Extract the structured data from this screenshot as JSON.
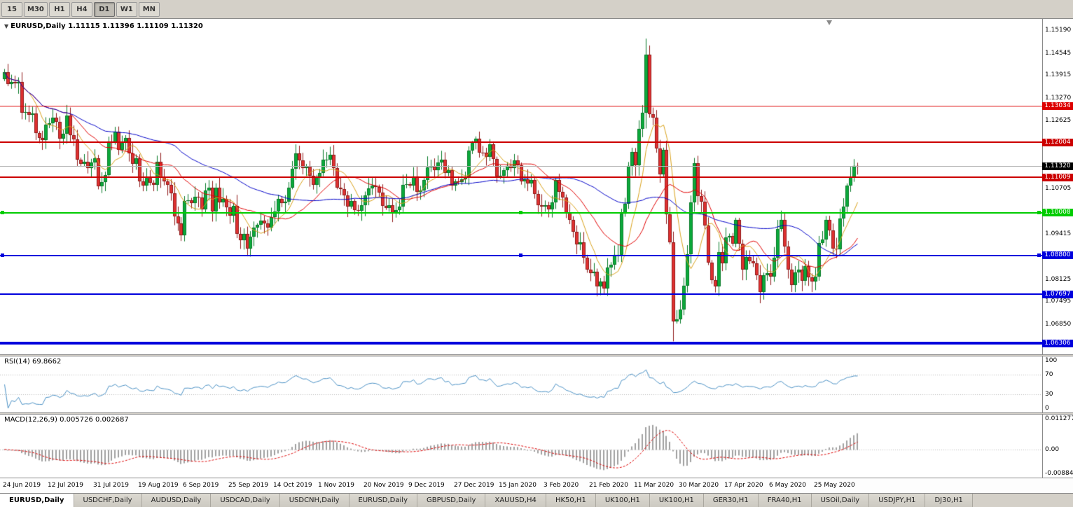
{
  "toolbar": {
    "periods": [
      "15",
      "M30",
      "H1",
      "H4",
      "D1",
      "W1",
      "MN"
    ],
    "active_period": "D1"
  },
  "chart": {
    "title": "EURUSD,Daily",
    "ohlc_text": "1.11115 1.11396 1.11109 1.11320",
    "price_axis_ticks": [
      "1.15190",
      "1.14545",
      "1.13915",
      "1.13270",
      "1.12625",
      "1.10705",
      "1.09415",
      "1.08125",
      "1.07495",
      "1.06850"
    ],
    "price_max": 1.1533,
    "price_min": 1.0615,
    "hlines": [
      {
        "price": 1.13034,
        "label": "1.13034",
        "color": "#dd0000",
        "thickness": 1,
        "handles": false,
        "style": "line"
      },
      {
        "price": 1.12004,
        "label": "1.12004",
        "color": "#cc0000",
        "thickness": 2,
        "handles": false,
        "style": "line"
      },
      {
        "price": 1.1132,
        "label": "1.11320",
        "color": "#000000",
        "thickness": 1,
        "handles": false,
        "style": "bid"
      },
      {
        "price": 1.11009,
        "label": "1.11009",
        "color": "#cc0000",
        "thickness": 2,
        "handles": false,
        "style": "line"
      },
      {
        "price": 1.10008,
        "label": "1.10008",
        "color": "#00cc00",
        "thickness": 2,
        "handles": true,
        "style": "line"
      },
      {
        "price": 1.088,
        "label": "1.08800",
        "color": "#0000dd",
        "thickness": 2,
        "handles": true,
        "style": "line"
      },
      {
        "price": 1.07697,
        "label": "1.07697",
        "color": "#0000dd",
        "thickness": 2,
        "handles": false,
        "style": "line"
      },
      {
        "price": 1.06306,
        "label": "1.06306",
        "color": "#0000dd",
        "thickness": 4,
        "handles": false,
        "style": "line"
      }
    ],
    "date_labels": [
      "24 Jun 2019",
      "12 Jul 2019",
      "31 Jul 2019",
      "19 Aug 2019",
      "6 Sep 2019",
      "25 Sep 2019",
      "14 Oct 2019",
      "1 Nov 2019",
      "20 Nov 2019",
      "9 Dec 2019",
      "27 Dec 2019",
      "15 Jan 2020",
      "3 Feb 2020",
      "21 Feb 2020",
      "11 Mar 2020",
      "30 Mar 2020",
      "17 Apr 2020",
      "6 May 2020",
      "25 May 2020"
    ]
  },
  "rsi": {
    "header": "RSI(14) 69.8662",
    "ticks": [
      "100",
      "70",
      "30",
      "0"
    ],
    "levels": [
      70,
      30
    ],
    "line_color": "#4a90c4"
  },
  "macd": {
    "header": "MACD(12,26,9) 0.005726 0.002687",
    "ticks": [
      "0.011277",
      "0.00",
      "-0.008847"
    ],
    "max": 0.011277,
    "min": -0.008847,
    "histogram_color": "#a0a0a0",
    "signal_color": "#dd0000"
  },
  "tabs": {
    "active_index": 0,
    "items": [
      "EURUSD,Daily",
      "USDCHF,Daily",
      "AUDUSD,Daily",
      "USDCAD,Daily",
      "USDCNH,Daily",
      "EURUSD,Daily",
      "GBPUSD,Daily",
      "XAUUSD,H4",
      "HK50,H1",
      "UK100,H1",
      "UK100,H1",
      "GER30,H1",
      "FRA40,H1",
      "USOil,Daily",
      "USDJPY,H1",
      "DJ30,H1"
    ]
  },
  "chart_data": {
    "type": "candlestick",
    "symbol": "EURUSD",
    "timeframe": "Daily",
    "first_open": 1.138,
    "up_color": "#0caa3c",
    "down_color": "#e03131",
    "ma_overlays": [
      {
        "period": 8,
        "color": "#d8a018"
      },
      {
        "period": 20,
        "color": "#e00000"
      },
      {
        "period": 50,
        "color": "#0000c8"
      }
    ],
    "special_bars": {
      "185": {
        "high": 1.1495,
        "low": 1.124
      },
      "193": {
        "low": 1.0636
      },
      "245": {
        "high": 1.1153
      }
    },
    "closes": [
      1.1399,
      1.1367,
      1.1373,
      1.1368,
      1.1373,
      1.1285,
      1.1287,
      1.1278,
      1.1283,
      1.1227,
      1.1213,
      1.1208,
      1.1251,
      1.1254,
      1.127,
      1.1258,
      1.1211,
      1.1226,
      1.1276,
      1.1221,
      1.1209,
      1.1151,
      1.1139,
      1.1146,
      1.1128,
      1.1143,
      1.1156,
      1.1076,
      1.1087,
      1.1108,
      1.1203,
      1.12,
      1.123,
      1.118,
      1.12,
      1.1213,
      1.117,
      1.114,
      1.1155,
      1.109,
      1.1078,
      1.11,
      1.1086,
      1.108,
      1.1145,
      1.1101,
      1.109,
      1.108,
      1.1057,
      1.099,
      1.0971,
      1.0936,
      1.1034,
      1.1036,
      1.1028,
      1.1047,
      1.1045,
      1.1011,
      1.1064,
      1.1073,
      1.1004,
      1.1072,
      1.103,
      1.1041,
      1.1017,
      1.0992,
      1.1021,
      1.0941,
      1.0922,
      1.0941,
      1.0899,
      1.0932,
      1.0959,
      1.0966,
      1.0979,
      1.0971,
      1.0958,
      1.0989,
      1.1004,
      1.104,
      1.1028,
      1.1032,
      1.1073,
      1.1125,
      1.117,
      1.115,
      1.1128,
      1.1131,
      1.1105,
      1.108,
      1.1099,
      1.1113,
      1.1151,
      1.1152,
      1.1166,
      1.1127,
      1.1073,
      1.1068,
      1.105,
      1.1018,
      1.1034,
      1.1009,
      1.1006,
      1.1022,
      1.1051,
      1.1071,
      1.1078,
      1.1074,
      1.1059,
      1.1021,
      1.1015,
      1.1022,
      1.1001,
      1.1009,
      1.1018,
      1.1079,
      1.1082,
      1.1078,
      1.1104,
      1.106,
      1.1064,
      1.1093,
      1.113,
      1.1131,
      1.1121,
      1.1143,
      1.1152,
      1.1113,
      1.1122,
      1.1078,
      1.1089,
      1.1087,
      1.1096,
      1.1102,
      1.1177,
      1.1199,
      1.1212,
      1.1172,
      1.1171,
      1.116,
      1.1196,
      1.1153,
      1.1103,
      1.1106,
      1.1122,
      1.1134,
      1.1128,
      1.115,
      1.1136,
      1.109,
      1.1095,
      1.1084,
      1.1093,
      1.1055,
      1.1023,
      1.1019,
      1.1022,
      1.101,
      1.1031,
      1.1093,
      1.106,
      1.1044,
      1.1,
      1.0981,
      1.0946,
      1.0911,
      1.0917,
      1.0873,
      1.084,
      1.083,
      1.0834,
      1.0792,
      1.0806,
      1.0785,
      1.0846,
      1.0853,
      1.0881,
      1.0881,
      1.0999,
      1.1026,
      1.1134,
      1.1173,
      1.1135,
      1.1239,
      1.1284,
      1.145,
      1.1281,
      1.1271,
      1.1184,
      1.1109,
      1.118,
      1.0996,
      1.0918,
      1.0692,
      1.0698,
      1.0727,
      1.0793,
      1.0883,
      1.103,
      1.1141,
      1.1048,
      1.1033,
      1.0964,
      1.0859,
      1.0809,
      1.0791,
      1.089,
      1.0857,
      1.093,
      1.0935,
      1.0913,
      1.098,
      1.0913,
      1.084,
      1.0875,
      1.0863,
      1.0858,
      1.0823,
      1.0775,
      1.0823,
      1.083,
      1.082,
      1.0873,
      1.0955,
      1.098,
      1.0906,
      1.0839,
      1.0795,
      1.0832,
      1.084,
      1.0807,
      1.0849,
      1.0818,
      1.0805,
      1.082,
      1.0916,
      1.0924,
      1.098,
      1.095,
      1.09,
      1.0898,
      1.0984,
      1.1018,
      1.1077,
      1.1101,
      1.1133,
      1.1132
    ]
  }
}
